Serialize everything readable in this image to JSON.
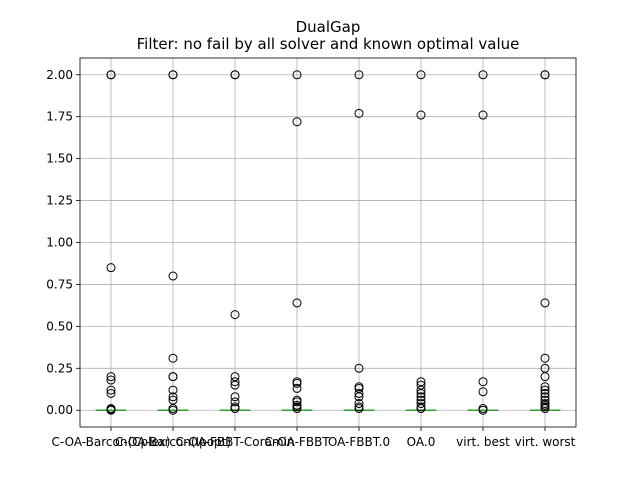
{
  "chart_data": {
    "type": "boxplot",
    "title": "DualGap",
    "subtitle": "Filter: no fail by all solver and known optimal value",
    "xlabel": "",
    "ylabel": "",
    "ylim": [
      -0.1,
      2.1
    ],
    "yticks": [
      "0.00",
      "0.25",
      "0.50",
      "0.75",
      "1.00",
      "1.25",
      "1.50",
      "1.75",
      "2.00"
    ],
    "grid": true,
    "colors": {
      "box": "#1f77b4",
      "median": "#2ca02c",
      "outlier": "#000000",
      "grid": "#b0b0b0"
    },
    "categories": [
      "C-OA-Barcon(Cplex)",
      "C-OA-Barcon(Ipopt)",
      "C-OA-FBBT-Coramin",
      "C-OA-FBBT",
      "OA-FBBT.0",
      "OA.0",
      "virt. best",
      "virt. worst"
    ],
    "boxes": [
      {
        "q1": 0.0,
        "median": 0.0,
        "q3": 0.0,
        "whisker_low": 0.0,
        "whisker_high": 0.0,
        "outliers": [
          2.0,
          2.0,
          0.85,
          0.2,
          0.18,
          0.12,
          0.1,
          0.01,
          0.005,
          0.0
        ]
      },
      {
        "q1": 0.0,
        "median": 0.0,
        "q3": 0.0,
        "whisker_low": 0.0,
        "whisker_high": 0.0,
        "outliers": [
          2.0,
          2.0,
          0.8,
          0.31,
          0.2,
          0.2,
          0.12,
          0.08,
          0.06,
          0.01,
          0.0
        ]
      },
      {
        "q1": 0.0,
        "median": 0.0,
        "q3": 0.0,
        "whisker_low": 0.0,
        "whisker_high": 0.0,
        "outliers": [
          2.0,
          2.0,
          0.57,
          0.2,
          0.17,
          0.15,
          0.08,
          0.05,
          0.02,
          0.01
        ]
      },
      {
        "q1": 0.0,
        "median": 0.0,
        "q3": 0.0,
        "whisker_low": 0.0,
        "whisker_high": 0.0,
        "outliers": [
          2.0,
          1.72,
          0.64,
          0.17,
          0.16,
          0.13,
          0.06,
          0.05,
          0.03,
          0.02,
          0.01
        ]
      },
      {
        "q1": 0.0,
        "median": 0.0,
        "q3": 0.0,
        "whisker_low": 0.0,
        "whisker_high": 0.0,
        "outliers": [
          2.0,
          1.77,
          0.25,
          0.14,
          0.13,
          0.1,
          0.08,
          0.04,
          0.02,
          0.01
        ]
      },
      {
        "q1": 0.0,
        "median": 0.0,
        "q3": 0.0,
        "whisker_low": 0.0,
        "whisker_high": 0.0,
        "outliers": [
          2.0,
          1.76,
          0.17,
          0.15,
          0.12,
          0.1,
          0.08,
          0.06,
          0.04,
          0.02,
          0.01
        ]
      },
      {
        "q1": 0.0,
        "median": 0.0,
        "q3": 0.0,
        "whisker_low": 0.0,
        "whisker_high": 0.0,
        "outliers": [
          2.0,
          1.76,
          0.17,
          0.11,
          0.01,
          0.0
        ]
      },
      {
        "q1": 0.0,
        "median": 0.0,
        "q3": 0.0,
        "whisker_low": 0.0,
        "whisker_high": 0.0,
        "outliers": [
          2.0,
          2.0,
          0.64,
          0.31,
          0.25,
          0.2,
          0.14,
          0.12,
          0.1,
          0.08,
          0.06,
          0.04,
          0.03,
          0.02,
          0.01
        ]
      }
    ]
  }
}
